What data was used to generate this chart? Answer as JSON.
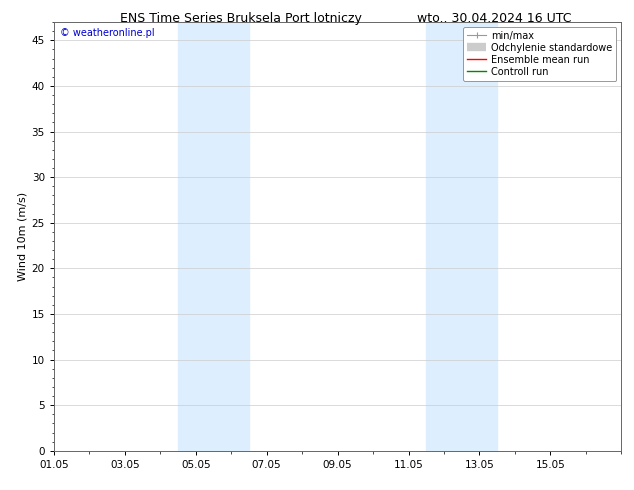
{
  "title_left": "ENS Time Series Bruksela Port lotniczy",
  "title_right": "wto.. 30.04.2024 16 UTC",
  "ylabel": "Wind 10m (m/s)",
  "watermark": "© weatheronline.pl",
  "watermark_color": "#0000cc",
  "xlim_start": 0,
  "xlim_end": 16,
  "ylim_min": 0,
  "ylim_max": 47,
  "yticks": [
    0,
    5,
    10,
    15,
    20,
    25,
    30,
    35,
    40,
    45
  ],
  "xtick_labels": [
    "01.05",
    "03.05",
    "05.05",
    "07.05",
    "09.05",
    "11.05",
    "13.05",
    "15.05"
  ],
  "xtick_positions": [
    0,
    2,
    4,
    6,
    8,
    10,
    12,
    14
  ],
  "shade_bands": [
    {
      "xmin": 3.5,
      "xmax": 5.5
    },
    {
      "xmin": 10.5,
      "xmax": 12.5
    }
  ],
  "shade_color": "#ddeeff",
  "bg_color": "#ffffff",
  "plot_bg_color": "#ffffff",
  "grid_color": "#cccccc",
  "legend_labels": [
    "min/max",
    "Odchylenie standardowe",
    "Ensemble mean run",
    "Controll run"
  ],
  "legend_colors": [
    "#999999",
    "#cccccc",
    "#ff0000",
    "#008800"
  ],
  "title_fontsize": 9,
  "tick_fontsize": 7.5,
  "ylabel_fontsize": 8,
  "watermark_fontsize": 7,
  "legend_fontsize": 7
}
